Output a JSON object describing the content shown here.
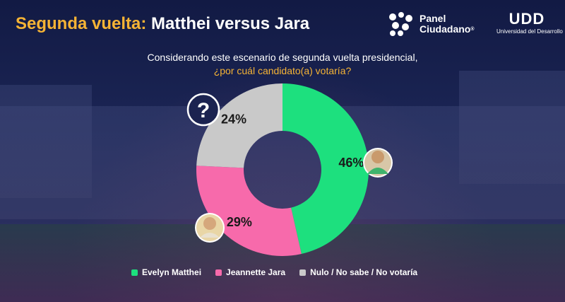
{
  "header": {
    "title_accent": "Segunda vuelta:",
    "title_rest": " Matthei versus Jara"
  },
  "logos": {
    "panel_line1": "Panel",
    "panel_line2": "Ciudadano",
    "panel_mark": "®",
    "udd_mark": "UDD",
    "udd_sub": "Universidad del Desarrollo"
  },
  "question": {
    "line1": "Considerando este escenario de segunda vuelta presidencial,",
    "line2": "¿por cuál candidato(a) votaría?"
  },
  "colors": {
    "matthei": "#1de07e",
    "jara": "#f76aab",
    "nulo": "#c9c9c9",
    "accent": "#f5b335"
  },
  "chart_data": {
    "type": "pie",
    "slices": [
      {
        "name": "Evelyn Matthei",
        "value": 46,
        "label": "46%",
        "color": "#1de07e"
      },
      {
        "name": "Jeannette Jara",
        "value": 29,
        "label": "29%",
        "color": "#f76aab"
      },
      {
        "name": "Nulo / No sabe / No votaría",
        "value": 24,
        "label": "24%",
        "color": "#c9c9c9"
      }
    ],
    "donut": true,
    "legend_position": "bottom",
    "icon_unknown": "?"
  }
}
